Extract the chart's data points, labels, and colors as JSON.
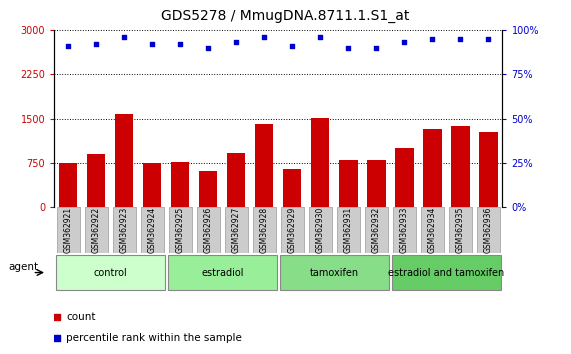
{
  "title": "GDS5278 / MmugDNA.8711.1.S1_at",
  "samples": [
    "GSM362921",
    "GSM362922",
    "GSM362923",
    "GSM362924",
    "GSM362925",
    "GSM362926",
    "GSM362927",
    "GSM362928",
    "GSM362929",
    "GSM362930",
    "GSM362931",
    "GSM362932",
    "GSM362933",
    "GSM362934",
    "GSM362935",
    "GSM362936"
  ],
  "counts": [
    750,
    900,
    1570,
    750,
    760,
    620,
    920,
    1400,
    650,
    1510,
    800,
    800,
    1000,
    1320,
    1380,
    1270
  ],
  "percentile_ranks": [
    91,
    92,
    96,
    92,
    92,
    90,
    93,
    96,
    91,
    96,
    90,
    90,
    93,
    95,
    95,
    95
  ],
  "bar_color": "#cc0000",
  "dot_color": "#0000cc",
  "left_axis_color": "#cc0000",
  "right_axis_color": "#0000cc",
  "ylim_left": [
    0,
    3000
  ],
  "ylim_right": [
    0,
    100
  ],
  "yticks_left": [
    0,
    750,
    1500,
    2250,
    3000
  ],
  "yticks_right": [
    0,
    25,
    50,
    75,
    100
  ],
  "groups": [
    {
      "label": "control",
      "start": 0,
      "end": 4,
      "color": "#ccffcc"
    },
    {
      "label": "estradiol",
      "start": 4,
      "end": 8,
      "color": "#99ee99"
    },
    {
      "label": "tamoxifen",
      "start": 8,
      "end": 12,
      "color": "#88dd88"
    },
    {
      "label": "estradiol and tamoxifen",
      "start": 12,
      "end": 16,
      "color": "#66cc66"
    }
  ],
  "agent_label": "agent",
  "legend_count_label": "count",
  "legend_percentile_label": "percentile rank within the sample",
  "sample_box_color": "#cccccc",
  "sample_box_edge_color": "#999999",
  "title_fontsize": 10,
  "bar_fontsize": 5.5,
  "legend_fontsize": 7.5,
  "group_fontsize": 7,
  "agent_fontsize": 7.5,
  "axis_tick_fontsize": 7
}
